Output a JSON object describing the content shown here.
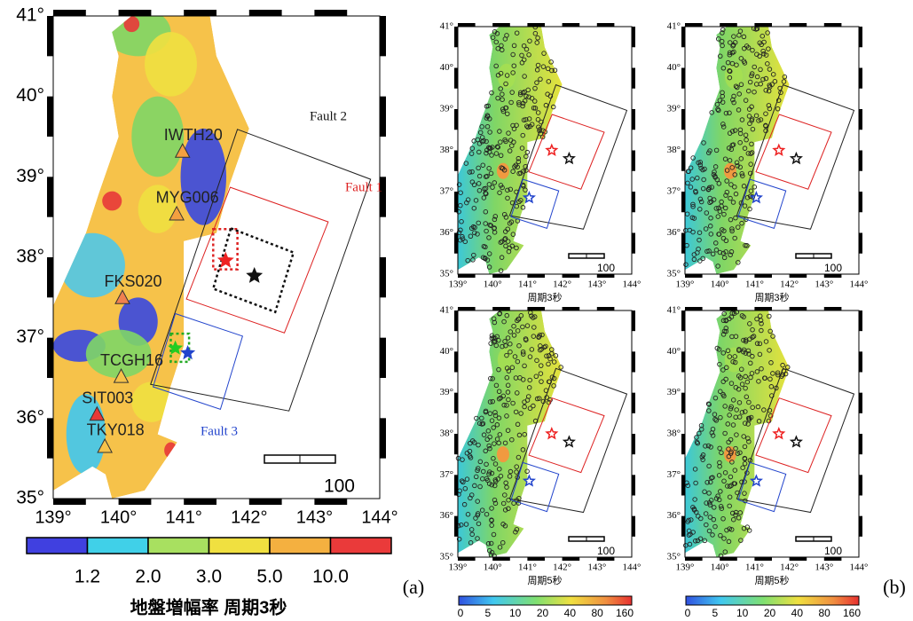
{
  "panel_a": {
    "lat_labels": [
      "35°",
      "36°",
      "37°",
      "38°",
      "39°",
      "40°",
      "41°"
    ],
    "lon_labels": [
      "139°",
      "140°",
      "141°",
      "142°",
      "143°",
      "144°"
    ],
    "faults": [
      "Fault 1",
      "Fault 2",
      "Fault 3"
    ],
    "stations": [
      "IWTH20",
      "MYG006",
      "FKS020",
      "TCGH16",
      "SIT003",
      "TKY018"
    ],
    "scale_label": "100",
    "colorbar_labels": [
      "1.2",
      "2.0",
      "3.0",
      "5.0",
      "10.0"
    ],
    "colorbar_title": "地盤増幅率 周期3秒",
    "label": "(a)"
  },
  "panel_b": {
    "lat_labels": [
      "35°",
      "36°",
      "37°",
      "38°",
      "39°",
      "40°",
      "41°"
    ],
    "lon_labels": [
      "139°",
      "140°",
      "141°",
      "142°",
      "143°",
      "144°"
    ],
    "maps": [
      {
        "subtitle": "周期3秒"
      },
      {
        "subtitle": "周期3秒"
      },
      {
        "subtitle": "周期5秒"
      },
      {
        "subtitle": "周期5秒"
      }
    ],
    "scale_label": "100",
    "colorbar_labels": [
      "0",
      "5",
      "10",
      "20",
      "40",
      "80",
      "160"
    ],
    "label": "(b)"
  }
}
